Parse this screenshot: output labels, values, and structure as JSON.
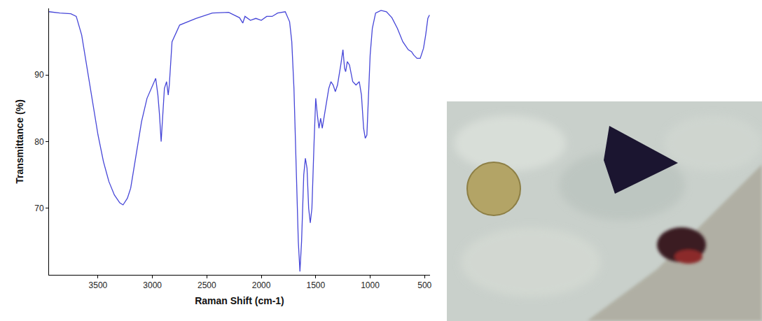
{
  "chart_data": {
    "type": "line",
    "x_label": "Raman Shift (cm-1)",
    "y_label": "Transmittance (%)",
    "x": [
      3950,
      3850,
      3750,
      3700,
      3650,
      3600,
      3550,
      3500,
      3450,
      3400,
      3350,
      3300,
      3270,
      3230,
      3200,
      3150,
      3100,
      3050,
      3000,
      2970,
      2950,
      2935,
      2920,
      2905,
      2890,
      2870,
      2855,
      2845,
      2820,
      2750,
      2600,
      2450,
      2300,
      2200,
      2170,
      2150,
      2100,
      2050,
      2000,
      1950,
      1900,
      1850,
      1780,
      1740,
      1720,
      1700,
      1680,
      1660,
      1645,
      1630,
      1610,
      1595,
      1580,
      1565,
      1550,
      1535,
      1515,
      1500,
      1485,
      1470,
      1455,
      1440,
      1420,
      1400,
      1380,
      1360,
      1340,
      1320,
      1300,
      1270,
      1250,
      1235,
      1225,
      1210,
      1190,
      1160,
      1130,
      1100,
      1080,
      1060,
      1045,
      1030,
      1015,
      1000,
      980,
      950,
      900,
      850,
      800,
      750,
      700,
      650,
      620,
      600,
      570,
      540,
      510,
      490,
      470,
      455
    ],
    "values": [
      99.5,
      99.3,
      99.2,
      98.8,
      96,
      91,
      86,
      81,
      77,
      74,
      72,
      70.8,
      70.5,
      71.5,
      73,
      78,
      83,
      86.5,
      88.5,
      89.5,
      87,
      84,
      80,
      84,
      88,
      89,
      87,
      88.5,
      95,
      97.5,
      98.5,
      99.3,
      99.4,
      98.6,
      97.8,
      98.8,
      98.2,
      98.5,
      98.2,
      98.8,
      98.8,
      99.3,
      99.5,
      98,
      95,
      88,
      76,
      65,
      60.5,
      65,
      75,
      77.5,
      76,
      70,
      67.8,
      70,
      80,
      86.5,
      84,
      82,
      83.5,
      82,
      84,
      86,
      88,
      89,
      88.5,
      87.5,
      88.5,
      91.5,
      93.8,
      91,
      90.5,
      92,
      91.5,
      89,
      88.5,
      89,
      87,
      82,
      80.5,
      81,
      87,
      93,
      97,
      99.3,
      99.7,
      99.5,
      98.6,
      97,
      95,
      93.8,
      93.5,
      93,
      92.5,
      92.5,
      94,
      96,
      98.5,
      99
    ],
    "color": "#4646d8",
    "xlim": [
      3950,
      450
    ],
    "xticks": [
      3500,
      3000,
      2500,
      2000,
      1500,
      1000,
      500
    ],
    "ylim": [
      60,
      100
    ],
    "yticks": [
      70,
      80,
      90
    ],
    "grid": false
  }
}
